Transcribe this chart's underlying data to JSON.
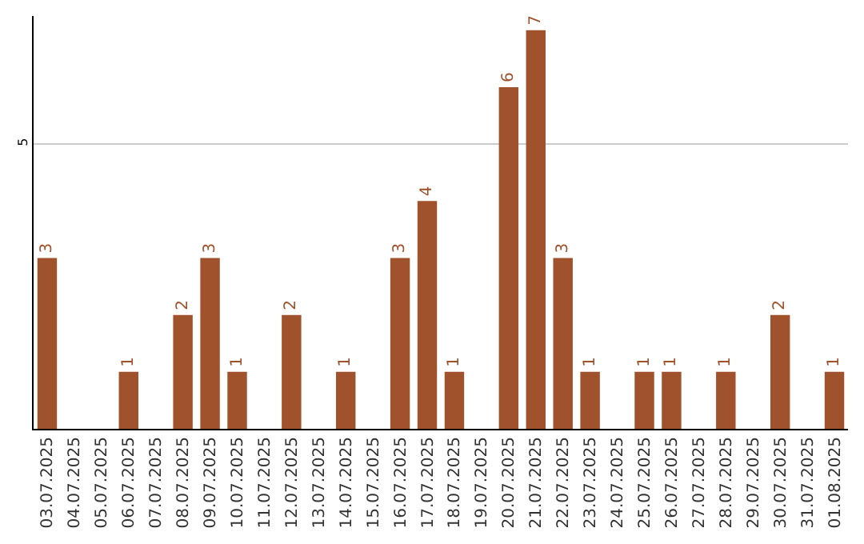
{
  "chart_data": {
    "type": "bar",
    "categories": [
      "03.07.2025",
      "04.07.2025",
      "05.07.2025",
      "06.07.2025",
      "07.07.2025",
      "08.07.2025",
      "09.07.2025",
      "10.07.2025",
      "11.07.2025",
      "12.07.2025",
      "13.07.2025",
      "14.07.2025",
      "15.07.2025",
      "16.07.2025",
      "17.07.2025",
      "18.07.2025",
      "19.07.2025",
      "20.07.2025",
      "21.07.2025",
      "22.07.2025",
      "23.07.2025",
      "24.07.2025",
      "25.07.2025",
      "26.07.2025",
      "27.07.2025",
      "28.07.2025",
      "29.07.2025",
      "30.07.2025",
      "31.07.2025",
      "01.08.2025"
    ],
    "values": [
      3,
      0,
      0,
      1,
      0,
      2,
      3,
      1,
      0,
      2,
      0,
      1,
      0,
      3,
      4,
      1,
      0,
      6,
      7,
      3,
      1,
      0,
      1,
      1,
      0,
      1,
      0,
      2,
      0,
      1
    ],
    "value_labels": [
      "3",
      null,
      null,
      "1",
      null,
      "2",
      "3",
      "1",
      null,
      "2",
      null,
      "1",
      null,
      "3",
      "4",
      "1",
      null,
      "6",
      "7",
      "3",
      "1",
      null,
      "1",
      "1",
      null,
      "1",
      null,
      "2",
      null,
      "1"
    ],
    "color": "#a0522d",
    "ylim": [
      0,
      7.25
    ],
    "yticks": [
      5
    ],
    "grid": "y"
  }
}
